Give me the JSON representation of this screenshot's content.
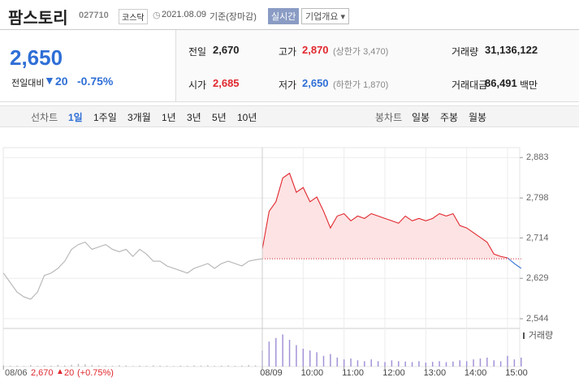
{
  "header": {
    "name": "팜스토리",
    "code": "027710",
    "market": "코스닥",
    "date": "2021.08.09",
    "basis": "기준(장마감)",
    "realtime": "실시간",
    "info": "기업개요"
  },
  "summary": {
    "price": "2,650",
    "change_label": "전일대비",
    "change": "20",
    "pct": "-0.75%",
    "rows": [
      [
        {
          "label": "전일",
          "value": "2,670"
        },
        {
          "label": "고가",
          "value": "2,870",
          "note": "(상한가 3,470)"
        },
        {
          "label": "거래량",
          "value": "31,136,122"
        }
      ],
      [
        {
          "label": "시가",
          "value": "2,685"
        },
        {
          "label": "저가",
          "value": "2,650",
          "note": "(하한가 1,870)"
        },
        {
          "label": "거래대금",
          "value": "86,491",
          "unit": "백만"
        }
      ]
    ]
  },
  "tabs": {
    "line_label": "선차트",
    "line": [
      "1일",
      "1주일",
      "3개월",
      "1년",
      "3년",
      "5년",
      "10년"
    ],
    "candle_label": "봉차트",
    "candle": [
      "일봉",
      "주봉",
      "월봉"
    ]
  },
  "footer": {
    "date": "08/06",
    "price": "2,670",
    "change": "20",
    "pct": "(+0.75%)"
  },
  "chart_data": {
    "type": "line",
    "categories": [
      "08/06",
      null,
      null,
      null,
      null,
      null,
      null,
      null,
      null,
      null,
      null,
      null,
      null,
      null,
      null,
      null,
      null,
      null,
      null,
      null,
      null,
      null,
      null,
      null,
      null,
      null,
      null,
      null,
      null,
      null,
      null,
      null,
      null,
      null,
      null,
      null,
      null,
      null,
      "08/09",
      null,
      null,
      null,
      null,
      null,
      "10:00",
      null,
      null,
      null,
      null,
      null,
      "11:00",
      null,
      null,
      null,
      null,
      null,
      "12:00",
      null,
      null,
      null,
      null,
      null,
      "13:00",
      null,
      null,
      null,
      null,
      null,
      "14:00",
      null,
      null,
      null,
      null,
      null,
      "15:00",
      null,
      null
    ],
    "series": [
      {
        "color": "#b4b4b4",
        "values": [
          2640,
          2620,
          2600,
          2590,
          2585,
          2600,
          2635,
          2640,
          2650,
          2665,
          2690,
          2700,
          2705,
          2690,
          2695,
          2700,
          2690,
          2685,
          2690,
          2675,
          2690,
          2680,
          2665,
          2665,
          2655,
          2650,
          2645,
          2640,
          2650,
          2655,
          2660,
          2650,
          2660,
          2665,
          2660,
          2655,
          2665,
          2668,
          2670,
          null,
          null,
          null,
          null,
          null,
          null,
          null,
          null,
          null,
          null,
          null,
          null,
          null,
          null,
          null,
          null,
          null,
          null,
          null,
          null,
          null,
          null,
          null,
          null,
          null,
          null,
          null,
          null,
          null,
          null,
          null,
          null,
          null,
          null,
          null,
          null,
          null,
          null
        ]
      },
      {
        "color": "#e0282f",
        "fill": "#fde3e3",
        "values": [
          null,
          null,
          null,
          null,
          null,
          null,
          null,
          null,
          null,
          null,
          null,
          null,
          null,
          null,
          null,
          null,
          null,
          null,
          null,
          null,
          null,
          null,
          null,
          null,
          null,
          null,
          null,
          null,
          null,
          null,
          null,
          null,
          null,
          null,
          null,
          null,
          null,
          null,
          2690,
          2770,
          2790,
          2840,
          2850,
          2810,
          2820,
          2790,
          2800,
          2770,
          2735,
          2760,
          2765,
          2750,
          2760,
          2755,
          2765,
          2760,
          2755,
          2750,
          2745,
          2760,
          2750,
          2755,
          2750,
          2755,
          2765,
          2760,
          2765,
          2740,
          2735,
          2725,
          2715,
          2705,
          2680,
          2675,
          2672,
          null,
          null
        ]
      },
      {
        "color": "#2f6fd6",
        "values": [
          null,
          null,
          null,
          null,
          null,
          null,
          null,
          null,
          null,
          null,
          null,
          null,
          null,
          null,
          null,
          null,
          null,
          null,
          null,
          null,
          null,
          null,
          null,
          null,
          null,
          null,
          null,
          null,
          null,
          null,
          null,
          null,
          null,
          null,
          null,
          null,
          null,
          null,
          null,
          null,
          null,
          null,
          null,
          null,
          null,
          null,
          null,
          null,
          null,
          null,
          null,
          null,
          null,
          null,
          null,
          null,
          null,
          null,
          null,
          null,
          null,
          null,
          null,
          null,
          null,
          null,
          null,
          null,
          null,
          null,
          null,
          null,
          null,
          null,
          2672,
          2660,
          2650
        ]
      }
    ],
    "baseline": 2670,
    "ylim": [
      2527,
      2904
    ],
    "yticks": [
      {
        "value": 2544,
        "label": "2,544"
      },
      {
        "value": 2629,
        "label": "2,629"
      },
      {
        "value": 2714,
        "label": "2,714"
      },
      {
        "value": 2798,
        "label": "2,798"
      },
      {
        "value": 2883,
        "label": "2,883"
      }
    ],
    "grid": true,
    "volume": {
      "label": "거래량",
      "ylim": [
        0,
        2000000
      ],
      "series": [
        {
          "color": "#bdbdbd",
          "values": [
            60000,
            40000,
            50000,
            30000,
            80000,
            40000,
            70000,
            50000,
            90000,
            60000,
            100000,
            150000,
            120000,
            80000,
            60000,
            50000,
            40000,
            70000,
            60000,
            30000,
            50000,
            40000,
            60000,
            50000,
            40000,
            30000,
            50000,
            40000,
            60000,
            50000,
            70000,
            40000,
            50000,
            60000,
            40000,
            50000,
            80000,
            60000,
            null,
            null,
            null,
            null,
            null,
            null,
            null,
            null,
            null,
            null,
            null,
            null,
            null,
            null,
            null,
            null,
            null,
            null,
            null,
            null,
            null,
            null,
            null,
            null,
            null,
            null,
            null,
            null,
            null,
            null,
            null,
            null,
            null,
            null,
            null,
            null,
            null,
            null,
            null
          ]
        },
        {
          "color": "#a493d8",
          "values": [
            null,
            null,
            null,
            null,
            null,
            null,
            null,
            null,
            null,
            null,
            null,
            null,
            null,
            null,
            null,
            null,
            null,
            null,
            null,
            null,
            null,
            null,
            null,
            null,
            null,
            null,
            null,
            null,
            null,
            null,
            null,
            null,
            null,
            null,
            null,
            null,
            null,
            null,
            900000,
            1400000,
            1600000,
            1800000,
            1500000,
            1200000,
            1000000,
            900000,
            800000,
            600000,
            700000,
            500000,
            400000,
            450000,
            350000,
            300000,
            400000,
            300000,
            250000,
            350000,
            300000,
            280000,
            250000,
            300000,
            220000,
            260000,
            300000,
            250000,
            280000,
            350000,
            300000,
            400000,
            450000,
            500000,
            350000,
            300000,
            600000,
            400000,
            500000
          ]
        }
      ]
    }
  }
}
